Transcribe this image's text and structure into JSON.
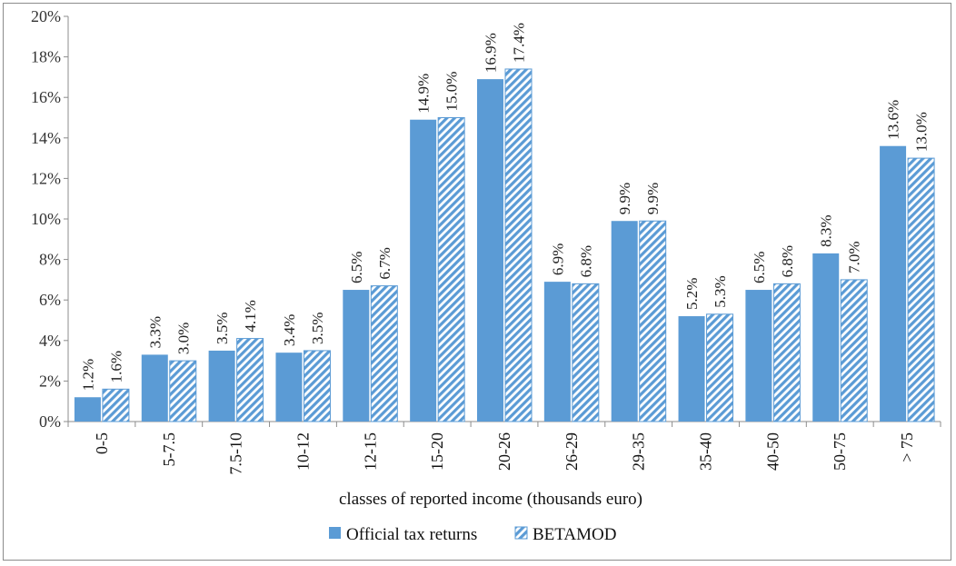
{
  "chart_data": {
    "type": "bar",
    "xlabel": "classes of reported income (thousands euro)",
    "ylim": [
      0,
      20
    ],
    "y_ticks": [
      "0%",
      "2%",
      "4%",
      "6%",
      "8%",
      "10%",
      "12%",
      "14%",
      "16%",
      "18%",
      "20%"
    ],
    "grid": false,
    "legend_position": "bottom",
    "categories": [
      "0-5",
      "5-7.5",
      "7.5-10",
      "10-12",
      "12-15",
      "15-20",
      "20-26",
      "26-29",
      "29-35",
      "35-40",
      "40-50",
      "50-75",
      "> 75"
    ],
    "series": [
      {
        "name": "Official tax returns",
        "color": "#5b9bd5",
        "pattern": "solid",
        "values": [
          1.2,
          3.3,
          3.5,
          3.4,
          6.5,
          14.9,
          16.9,
          6.9,
          9.9,
          5.2,
          6.5,
          8.3,
          13.6
        ],
        "labels": [
          "1.2%",
          "3.3%",
          "3.5%",
          "3.4%",
          "6.5%",
          "14.9%",
          "16.9%",
          "6.9%",
          "9.9%",
          "5.2%",
          "6.5%",
          "8.3%",
          "13.6%"
        ]
      },
      {
        "name": "BETAMOD",
        "color": "#5b9bd5",
        "pattern": "diagonal-hatch",
        "values": [
          1.6,
          3.0,
          4.1,
          3.5,
          6.7,
          15.0,
          17.4,
          6.8,
          9.9,
          5.3,
          6.8,
          7.0,
          13.0
        ],
        "labels": [
          "1.6%",
          "3.0%",
          "4.1%",
          "3.5%",
          "6.7%",
          "15.0%",
          "17.4%",
          "6.8%",
          "9.9%",
          "5.3%",
          "6.8%",
          "7.0%",
          "13.0%"
        ]
      }
    ]
  }
}
